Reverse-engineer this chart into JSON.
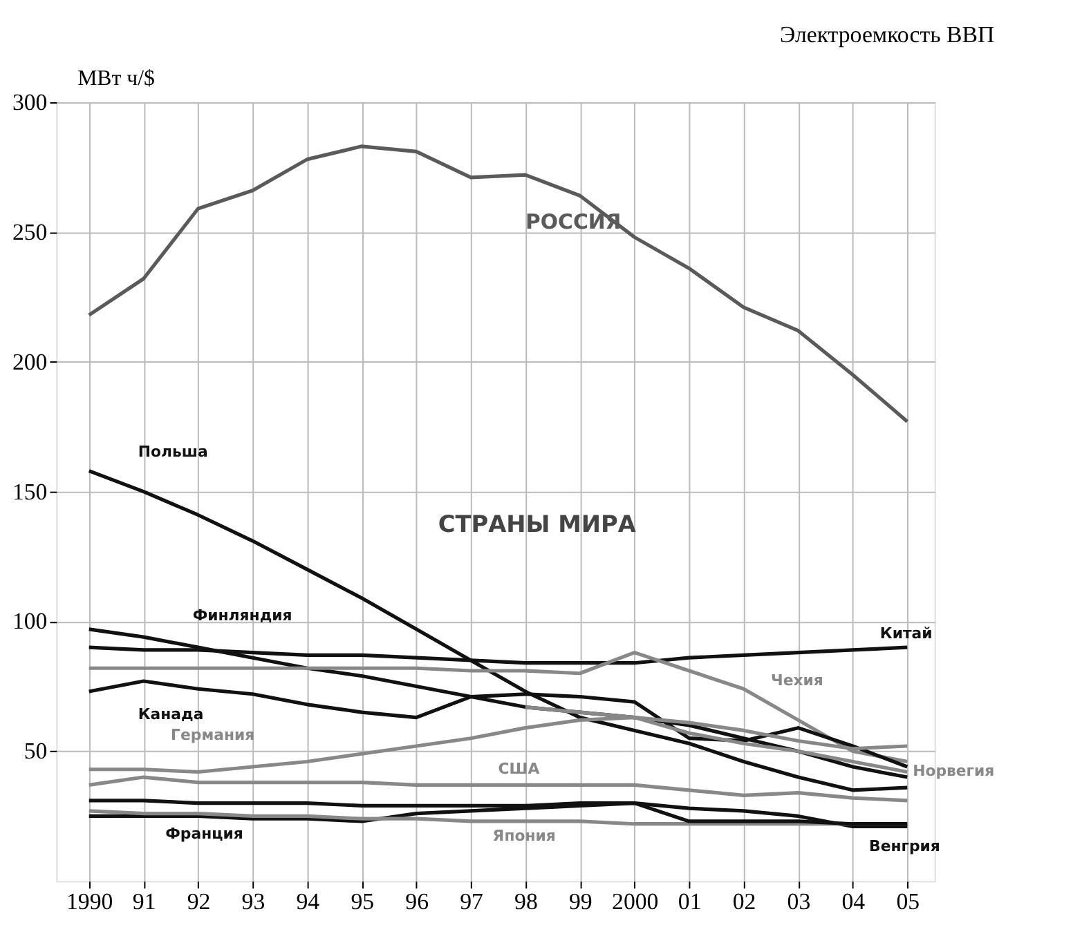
{
  "chart_data": {
    "type": "line",
    "title": "Электроемкость ВВП",
    "ylabel": "МВт ч/$",
    "x": [
      1990,
      1991,
      1992,
      1993,
      1994,
      1995,
      1996,
      1997,
      1998,
      1999,
      2000,
      2001,
      2002,
      2003,
      2004,
      2005
    ],
    "xlim": [
      1989.4,
      2005.5
    ],
    "xticks": [
      {
        "value": 1990,
        "label": "1990"
      },
      {
        "value": 1991,
        "label": "91"
      },
      {
        "value": 1992,
        "label": "92"
      },
      {
        "value": 1993,
        "label": "93"
      },
      {
        "value": 1994,
        "label": "94"
      },
      {
        "value": 1995,
        "label": "95"
      },
      {
        "value": 1996,
        "label": "96"
      },
      {
        "value": 1997,
        "label": "97"
      },
      {
        "value": 1998,
        "label": "98"
      },
      {
        "value": 1999,
        "label": "99"
      },
      {
        "value": 2000,
        "label": "2000"
      },
      {
        "value": 2001,
        "label": "01"
      },
      {
        "value": 2002,
        "label": "02"
      },
      {
        "value": 2003,
        "label": "03"
      },
      {
        "value": 2004,
        "label": "04"
      },
      {
        "value": 2005,
        "label": "05"
      }
    ],
    "ylim": [
      0,
      300
    ],
    "yticks": [
      50,
      100,
      150,
      200,
      250,
      300
    ],
    "grid": true,
    "marker": "none",
    "line_style": "solid",
    "annotations": [
      "СТРАНЫ МИРА"
    ],
    "series": [
      {
        "name": "РОССИЯ",
        "color": "#5a5a5a",
        "values": [
          218,
          232,
          259,
          266,
          278,
          283,
          281,
          271,
          272,
          264,
          248,
          236,
          221,
          212,
          195,
          177
        ]
      },
      {
        "name": "Польша",
        "color": "#111111",
        "values": [
          158,
          150,
          141,
          131,
          120,
          109,
          97,
          85,
          73,
          63,
          58,
          53,
          46,
          40,
          35,
          36
        ]
      },
      {
        "name": "Финляндия",
        "color": "#111111",
        "values": [
          97,
          94,
          90,
          86,
          82,
          79,
          75,
          71,
          67,
          65,
          63,
          60,
          55,
          50,
          44,
          40
        ]
      },
      {
        "name": "Китай",
        "color": "#111111",
        "values": [
          90,
          89,
          89,
          88,
          87,
          87,
          86,
          85,
          84,
          84,
          84,
          86,
          87,
          88,
          89,
          90
        ]
      },
      {
        "name": "Чехия",
        "color": "#888888",
        "values": [
          82,
          82,
          82,
          82,
          82,
          82,
          82,
          81,
          81,
          80,
          88,
          81,
          74,
          62,
          50,
          46
        ]
      },
      {
        "name": "Канада",
        "color": "#111111",
        "values": [
          73,
          77,
          74,
          72,
          68,
          65,
          63,
          71,
          72,
          71,
          69,
          55,
          54,
          59,
          52,
          44
        ]
      },
      {
        "name": "Германия",
        "color": "#888888",
        "values": [
          43,
          43,
          42,
          44,
          46,
          49,
          52,
          55,
          59,
          62,
          63,
          61,
          58,
          54,
          51,
          52
        ]
      },
      {
        "name": "Норвегия",
        "color": "#888888",
        "x": [
          1998,
          1999,
          2000,
          2001,
          2002,
          2003,
          2004,
          2005
        ],
        "values": [
          67,
          65,
          63,
          57,
          53,
          50,
          46,
          42
        ]
      },
      {
        "name": "США",
        "color": "#888888",
        "values": [
          37,
          40,
          38,
          38,
          38,
          38,
          37,
          37,
          37,
          37,
          37,
          35,
          33,
          34,
          32,
          31
        ]
      },
      {
        "name": "Франция",
        "color": "#111111",
        "values": [
          25,
          25,
          25,
          24,
          24,
          23,
          26,
          27,
          28,
          29,
          30,
          28,
          27,
          25,
          21,
          21
        ]
      },
      {
        "name": "Япония",
        "color": "#888888",
        "values": [
          27,
          26,
          26,
          25,
          25,
          24,
          24,
          23,
          23,
          23,
          22,
          22,
          22,
          22,
          22,
          22
        ]
      },
      {
        "name": "Венгрия",
        "color": "#111111",
        "values": [
          31,
          31,
          30,
          30,
          30,
          29,
          29,
          29,
          29,
          30,
          30,
          23,
          23,
          23,
          22,
          22
        ]
      }
    ]
  }
}
